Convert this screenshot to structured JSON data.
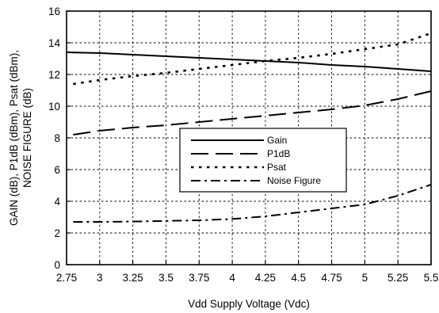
{
  "chart_data": {
    "type": "line",
    "xlabel": "Vdd Supply Voltage (Vdc)",
    "ylabel_lines": [
      "GAIN (dB), P1dB (dBm), Psat (dBm),",
      "NOISE FIGURE (dB)"
    ],
    "xlim": [
      2.75,
      5.5
    ],
    "ylim": [
      0,
      16
    ],
    "xticks": [
      2.75,
      3,
      3.25,
      3.5,
      3.75,
      4,
      4.25,
      4.5,
      4.75,
      5,
      5.25,
      5.5
    ],
    "xtick_labels": [
      "2.75",
      "3",
      "3.25",
      "3.5",
      "3.75",
      "4",
      "4.25",
      "4.5",
      "4.75",
      "5",
      "5.25",
      "5.5"
    ],
    "yticks": [
      0,
      2,
      4,
      6,
      8,
      10,
      12,
      14,
      16
    ],
    "ytick_labels": [
      "0",
      "2",
      "4",
      "6",
      "8",
      "10",
      "12",
      "14",
      "16"
    ],
    "grid": true,
    "legend_position": "center-right",
    "series": [
      {
        "name": "Gain",
        "style": "solid",
        "x": [
          2.75,
          3.0,
          3.25,
          3.5,
          3.75,
          4.0,
          4.25,
          4.5,
          4.75,
          5.0,
          5.25,
          5.5
        ],
        "y": [
          13.4,
          13.35,
          13.25,
          13.15,
          13.05,
          12.95,
          12.85,
          12.75,
          12.6,
          12.5,
          12.35,
          12.2
        ]
      },
      {
        "name": "P1dB",
        "style": "long-dash",
        "x": [
          2.8,
          3.0,
          3.25,
          3.5,
          3.75,
          4.0,
          4.25,
          4.5,
          4.75,
          5.0,
          5.25,
          5.5
        ],
        "y": [
          8.2,
          8.45,
          8.65,
          8.8,
          9.0,
          9.2,
          9.4,
          9.6,
          9.8,
          10.05,
          10.45,
          10.95
        ]
      },
      {
        "name": "Psat",
        "style": "dotted",
        "x": [
          2.8,
          3.0,
          3.25,
          3.5,
          3.75,
          4.0,
          4.25,
          4.5,
          4.75,
          5.0,
          5.25,
          5.5
        ],
        "y": [
          11.4,
          11.65,
          11.9,
          12.1,
          12.35,
          12.6,
          12.85,
          13.05,
          13.3,
          13.6,
          13.9,
          14.6
        ]
      },
      {
        "name": "Noise Figure",
        "style": "dash-dot",
        "x": [
          2.8,
          3.0,
          3.25,
          3.5,
          3.75,
          4.0,
          4.25,
          4.5,
          4.75,
          5.0,
          5.25,
          5.5
        ],
        "y": [
          2.7,
          2.7,
          2.72,
          2.76,
          2.8,
          2.88,
          3.05,
          3.3,
          3.55,
          3.8,
          4.35,
          5.05
        ]
      }
    ]
  }
}
